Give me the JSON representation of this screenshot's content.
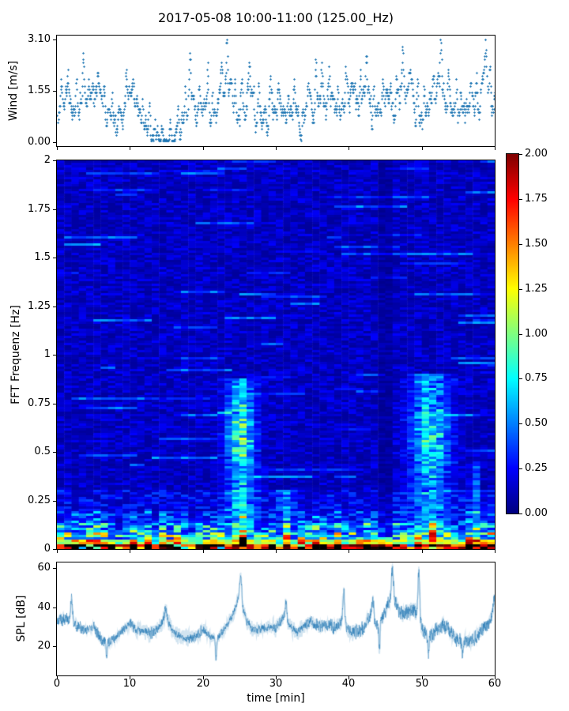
{
  "title": "2017-05-08 10:00-11:00 (125.00_Hz)",
  "axes": {
    "wind": {
      "ylabel": "Wind [m/s]",
      "yticks": [
        "3.10",
        "1.55",
        "0.00"
      ]
    },
    "fft": {
      "ylabel": "FFT Frequenz [Hz]",
      "yticks": [
        "2",
        "1.75",
        "1.5",
        "1.25",
        "1",
        "0.75",
        "0.5",
        "0.25",
        "0"
      ]
    },
    "colorbar": {
      "ticks": [
        "2.00",
        "1.75",
        "1.50",
        "1.25",
        "1.00",
        "0.75",
        "0.50",
        "0.25",
        "0.00"
      ]
    },
    "spl": {
      "ylabel": "SPL [dB]",
      "yticks": [
        "60",
        "40",
        "20"
      ]
    },
    "x": {
      "label": "time [min]",
      "ticks": [
        "0",
        "10",
        "20",
        "30",
        "40",
        "50",
        "60"
      ]
    }
  },
  "chart_data": [
    {
      "type": "scatter",
      "name": "wind-speed",
      "marker": "+",
      "color": "#1f77b4",
      "xlabel_shared": "time [min]",
      "ylabel": "Wind [m/s]",
      "xlim": [
        0,
        60
      ],
      "ylim": [
        -0.124,
        3.224
      ],
      "ytick_values": [
        0.0,
        1.55,
        3.1
      ],
      "quantization_mps": 0.1,
      "mean_per_min": [
        1.1,
        1.2,
        1.1,
        1.5,
        1.6,
        1.2,
        1.0,
        1.1,
        0.8,
        1.1,
        1.0,
        0.8,
        0.6,
        0.3,
        0.15,
        0.2,
        0.5,
        0.8,
        1.0,
        0.9,
        1.1,
        1.0,
        1.2,
        1.6,
        1.2,
        1.0,
        1.4,
        1.0,
        0.8,
        1.0,
        1.1,
        0.9,
        0.8,
        0.7,
        1.0,
        1.2,
        1.0,
        1.4,
        1.1,
        1.3,
        1.0,
        1.3,
        1.5,
        1.1,
        1.3,
        1.5,
        1.2,
        1.6,
        1.7,
        1.3,
        1.0,
        1.3,
        1.7,
        1.4,
        1.0,
        1.2,
        1.4,
        1.1,
        1.7,
        1.5
      ],
      "max_per_min": [
        1.9,
        2.0,
        1.9,
        2.9,
        2.5,
        2.1,
        1.7,
        1.8,
        1.5,
        1.8,
        1.6,
        1.5,
        1.3,
        0.8,
        0.5,
        0.6,
        1.2,
        1.5,
        1.9,
        1.6,
        2.0,
        1.9,
        2.3,
        3.1,
        2.4,
        1.9,
        2.3,
        1.9,
        1.5,
        1.8,
        2.0,
        1.7,
        1.5,
        1.4,
        2.0,
        2.4,
        1.9,
        2.3,
        2.0,
        2.2,
        1.8,
        2.1,
        2.5,
        2.0,
        2.6,
        2.3,
        2.0,
        2.6,
        2.5,
        2.2,
        1.8,
        2.4,
        3.0,
        2.4,
        1.8,
        2.0,
        2.2,
        1.9,
        3.0,
        2.9
      ]
    },
    {
      "type": "heatmap",
      "name": "fft-spectrogram",
      "colormap": "jet",
      "xlim": [
        0,
        60
      ],
      "ylim": [
        0,
        2
      ],
      "clim": [
        0,
        2
      ],
      "ylabel": "FFT Frequenz [Hz]",
      "n_time_bins": 60,
      "n_freq_bins": 164,
      "background_level": 0.14,
      "band_levels": [
        {
          "f_max": 0.025,
          "level": 1.7
        },
        {
          "f_max": 0.045,
          "level": 1.0
        },
        {
          "f_max": 0.08,
          "level": 0.75
        },
        {
          "f_max": 0.13,
          "level": 0.5
        },
        {
          "f_max": 0.2,
          "level": 0.32
        },
        {
          "f_max": 0.3,
          "level": 0.22
        }
      ],
      "features": {
        "bright_plumes": [
          {
            "t_center": 25.2,
            "t_sigma": 1.3,
            "f_max": 0.88,
            "amp": 0.55
          },
          {
            "t_center": 51.2,
            "t_sigma": 1.8,
            "f_max": 0.9,
            "amp": 0.45
          },
          {
            "t_center": 57.2,
            "t_sigma": 0.35,
            "f_max": 0.45,
            "amp": 0.35
          },
          {
            "t_center": 31.5,
            "t_sigma": 0.8,
            "f_max": 0.3,
            "amp": 0.25
          }
        ],
        "dark_band": {
          "t_start": 43.6,
          "t_end": 46.4,
          "factor": 0.5
        },
        "horizontal_streak": {
          "f": 1.57,
          "t_start": 1.0,
          "t_end": 6.0,
          "level": 0.55
        }
      }
    },
    {
      "type": "line",
      "name": "spl",
      "color": "#1f77b4",
      "xlabel": "time [min]",
      "ylabel": "SPL [dB]",
      "xlim": [
        0,
        60
      ],
      "ylim": [
        5,
        63
      ],
      "ytick_values": [
        20,
        40,
        60
      ],
      "values_per_min": [
        33,
        34,
        33,
        30,
        28,
        30,
        24,
        22,
        24,
        28,
        32,
        28,
        28,
        26,
        30,
        35,
        27,
        25,
        24,
        25,
        29,
        25,
        24,
        29,
        35,
        46,
        33,
        28,
        29,
        30,
        29,
        35,
        30,
        27,
        31,
        33,
        30,
        31,
        30,
        32,
        28,
        27,
        29,
        36,
        30,
        38,
        47,
        37,
        37,
        39,
        28,
        25,
        28,
        31,
        27,
        23,
        22,
        23,
        27,
        31,
        38
      ],
      "spikes": [
        [
          2.0,
          44
        ],
        [
          14.9,
          39
        ],
        [
          25.2,
          56
        ],
        [
          31.4,
          42
        ],
        [
          39.3,
          49
        ],
        [
          43.3,
          44
        ],
        [
          46.0,
          60
        ],
        [
          49.6,
          58
        ],
        [
          59.9,
          43
        ]
      ],
      "dips": [
        [
          6.8,
          15
        ],
        [
          21.8,
          14
        ],
        [
          44.2,
          18
        ],
        [
          50.9,
          17
        ],
        [
          55.6,
          16
        ]
      ],
      "noise_band_db": 4
    }
  ]
}
